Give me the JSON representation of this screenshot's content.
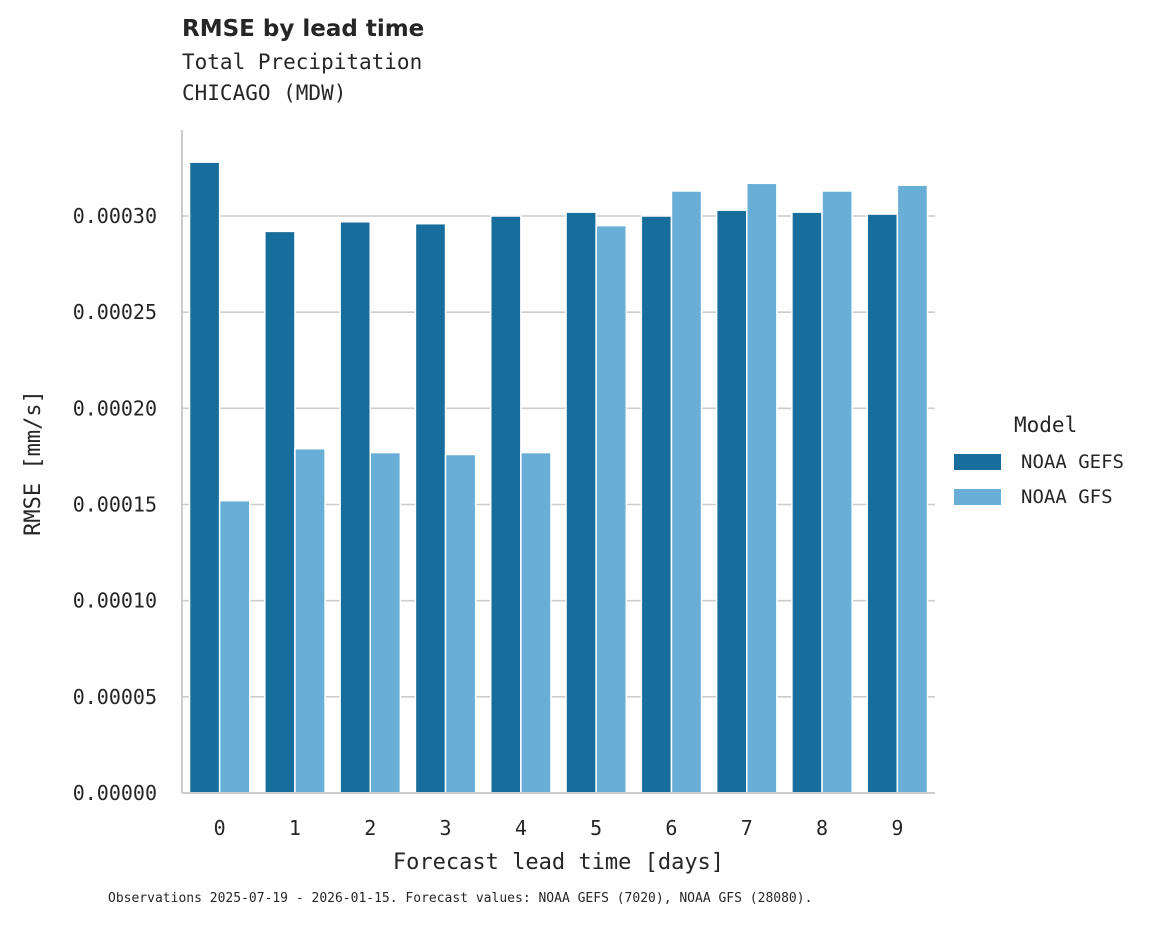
{
  "header": {
    "title": "RMSE by lead time",
    "subtitle1": "Total Precipitation",
    "subtitle2": "CHICAGO (MDW)"
  },
  "footnote": "Observations 2025-07-19 - 2026-01-15. Forecast values: NOAA GEFS (7020), NOAA GFS (28080).",
  "legend": {
    "title": "Model",
    "items": [
      {
        "label": "NOAA GEFS",
        "color": "#176d9c"
      },
      {
        "label": "NOAA GFS",
        "color": "#68aed6"
      }
    ]
  },
  "chart_data": {
    "type": "bar",
    "title": "RMSE by lead time",
    "subtitle": "Total Precipitation / CHICAGO (MDW)",
    "xlabel": "Forecast lead time [days]",
    "ylabel": "RMSE [mm/s]",
    "categories": [
      "0",
      "1",
      "2",
      "3",
      "4",
      "5",
      "6",
      "7",
      "8",
      "9"
    ],
    "series": [
      {
        "name": "NOAA GEFS",
        "color": "#176d9c",
        "values": [
          0.000328,
          0.000292,
          0.000297,
          0.000296,
          0.0003,
          0.000302,
          0.0003,
          0.000303,
          0.000302,
          0.000301
        ]
      },
      {
        "name": "NOAA GFS",
        "color": "#68aed6",
        "values": [
          0.000152,
          0.000179,
          0.000177,
          0.000176,
          0.000177,
          0.000295,
          0.000313,
          0.000317,
          0.000313,
          0.000316
        ]
      }
    ],
    "yticks": [
      "0.00000",
      "0.00005",
      "0.00010",
      "0.00015",
      "0.00020",
      "0.00025",
      "0.00030"
    ],
    "ytick_values": [
      0,
      5e-05,
      0.0001,
      0.00015,
      0.0002,
      0.00025,
      0.0003
    ],
    "ylim": [
      0,
      0.000345
    ],
    "grid": "horizontal",
    "legend_position": "right"
  }
}
